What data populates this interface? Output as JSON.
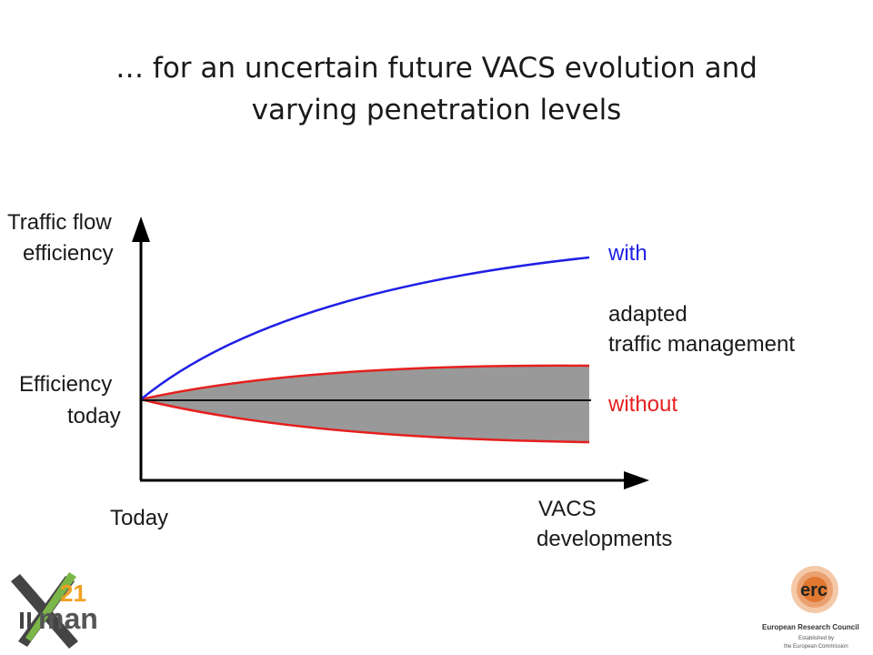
{
  "slide": {
    "title_line1": "… for an uncertain future VACS evolution and",
    "title_line2": "varying penetration levels"
  },
  "diagram": {
    "y_axis_label_line1": "Traffic flow",
    "y_axis_label_line2": "efficiency",
    "y_mark_line1": "Efficiency",
    "y_mark_line2": "today",
    "x_start_label": "Today",
    "x_axis_label_line1": "VACS",
    "x_axis_label_line2": "developments",
    "label_with": "with",
    "label_adapted_line1": "adapted",
    "label_adapted_line2": "traffic management",
    "label_without": "without",
    "colors": {
      "with_curve": "#1f1fe6",
      "without_band": "#e61f1f",
      "band_fill": "#999999",
      "baseline": "#111111"
    }
  },
  "logos": {
    "left_number": "21",
    "left_text": "man",
    "right_short": "erc",
    "right_name": "European Research Council",
    "right_sub1": "Established by",
    "right_sub2": "the European Commission"
  }
}
